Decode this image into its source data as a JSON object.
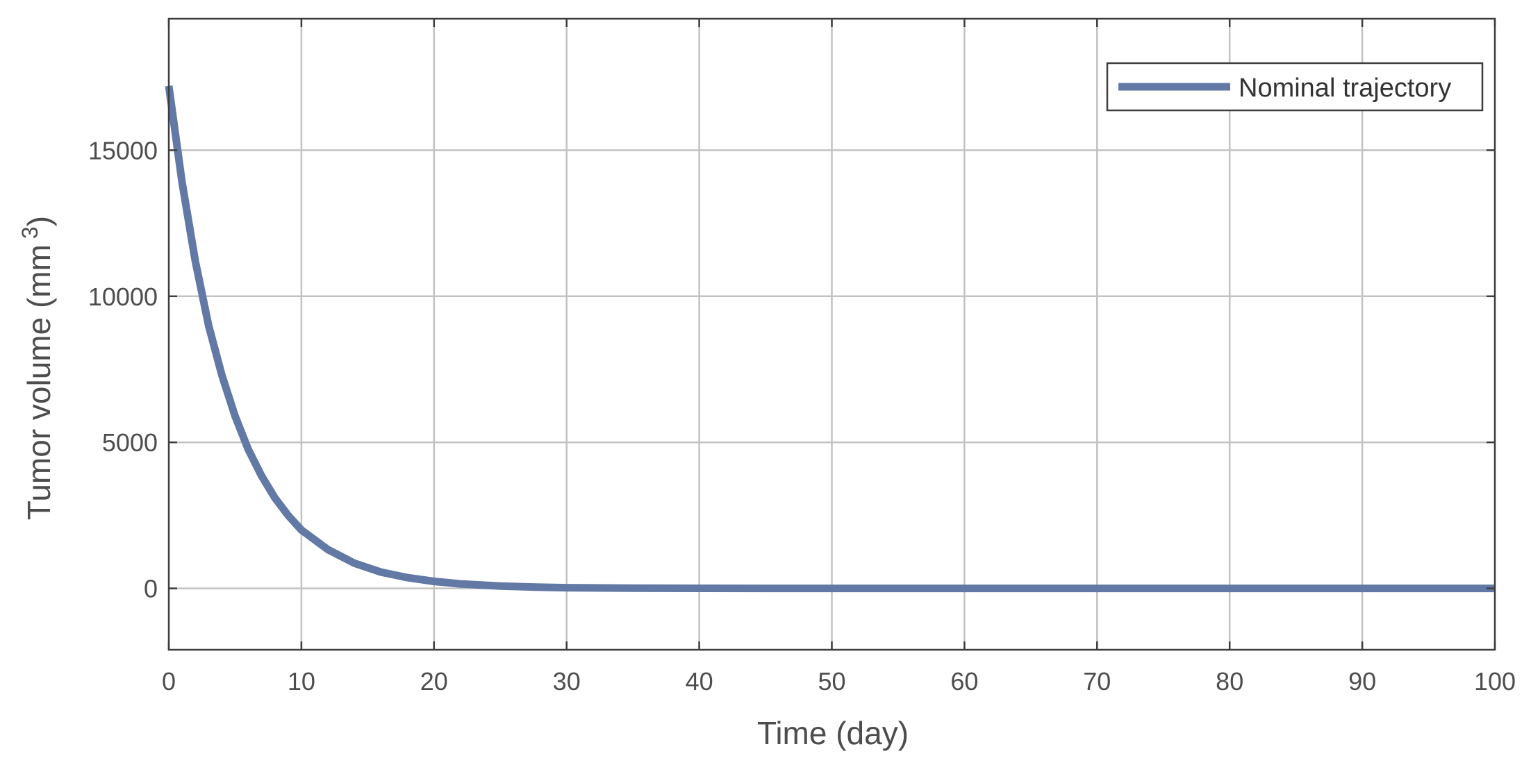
{
  "chart_data": {
    "type": "line",
    "title": "",
    "xlabel": "Time (day)",
    "ylabel_main": "Tumor volume (mm",
    "ylabel_sup": "3",
    "ylabel_close": ")",
    "xlim": [
      0,
      100
    ],
    "ylim": [
      -2100,
      19500
    ],
    "xticks": [
      0,
      10,
      20,
      30,
      40,
      50,
      60,
      70,
      80,
      90,
      100
    ],
    "yticks": [
      0,
      5000,
      10000,
      15000
    ],
    "xtick_labels": [
      "0",
      "10",
      "20",
      "30",
      "40",
      "50",
      "60",
      "70",
      "80",
      "90",
      "100"
    ],
    "ytick_labels": [
      "0",
      "5000",
      "10000",
      "15000"
    ],
    "grid": true,
    "legend_position": "top-right",
    "series": [
      {
        "name": "Nominal trajectory",
        "color": "#6279a6",
        "x": [
          0,
          1,
          2,
          3,
          4,
          5,
          6,
          7,
          8,
          9,
          10,
          12,
          14,
          16,
          18,
          20,
          22,
          25,
          28,
          30,
          35,
          40,
          45,
          50,
          60,
          70,
          80,
          90,
          100
        ],
        "y": [
          17200,
          13900,
          11200,
          9000,
          7300,
          5900,
          4750,
          3850,
          3100,
          2500,
          2000,
          1330,
          860,
          560,
          370,
          240,
          155,
          80,
          40,
          25,
          8,
          3,
          1,
          0,
          0,
          0,
          0,
          0,
          0
        ]
      }
    ]
  }
}
